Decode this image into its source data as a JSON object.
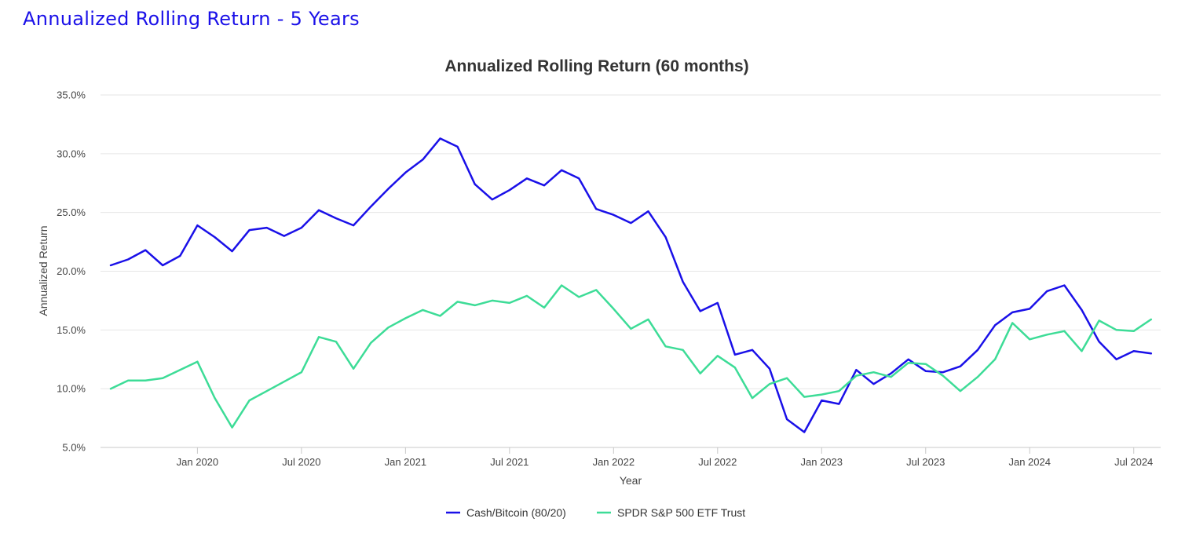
{
  "page": {
    "heading": "Annualized Rolling Return - 5 Years"
  },
  "chart_data": {
    "type": "line",
    "title": "Annualized Rolling Return (60 months)",
    "xlabel": "Year",
    "ylabel": "Annualized Return",
    "ylim": [
      5,
      35
    ],
    "yticks": [
      "5.0%",
      "10.0%",
      "15.0%",
      "20.0%",
      "25.0%",
      "30.0%",
      "35.0%"
    ],
    "ytick_values": [
      5,
      10,
      15,
      20,
      25,
      30,
      35
    ],
    "xticks": [
      "Jan 2020",
      "Jul 2020",
      "Jan 2021",
      "Jul 2021",
      "Jan 2022",
      "Jul 2022",
      "Jan 2023",
      "Jul 2023",
      "Jan 2024",
      "Jul 2024"
    ],
    "xtick_dates": [
      "2020-01",
      "2020-07",
      "2021-01",
      "2021-07",
      "2022-01",
      "2022-07",
      "2023-01",
      "2023-07",
      "2024-01",
      "2024-07"
    ],
    "grid": true,
    "legend_position": "bottom-center",
    "x": [
      "2019-08",
      "2019-09",
      "2019-10",
      "2019-11",
      "2019-12",
      "2020-01",
      "2020-02",
      "2020-03",
      "2020-04",
      "2020-05",
      "2020-06",
      "2020-07",
      "2020-08",
      "2020-09",
      "2020-10",
      "2020-11",
      "2020-12",
      "2021-01",
      "2021-02",
      "2021-03",
      "2021-04",
      "2021-05",
      "2021-06",
      "2021-07",
      "2021-08",
      "2021-09",
      "2021-10",
      "2021-11",
      "2021-12",
      "2022-01",
      "2022-02",
      "2022-03",
      "2022-04",
      "2022-05",
      "2022-06",
      "2022-07",
      "2022-08",
      "2022-09",
      "2022-10",
      "2022-11",
      "2022-12",
      "2023-01",
      "2023-02",
      "2023-03",
      "2023-04",
      "2023-05",
      "2023-06",
      "2023-07",
      "2023-08",
      "2023-09",
      "2023-10",
      "2023-11",
      "2023-12",
      "2024-01",
      "2024-02",
      "2024-03",
      "2024-04",
      "2024-05",
      "2024-06",
      "2024-07",
      "2024-08",
      "2024-09"
    ],
    "series": [
      {
        "name": "Cash/Bitcoin (80/20)",
        "color": "#1a10e8",
        "values": [
          20.5,
          21.0,
          21.8,
          20.5,
          21.3,
          23.9,
          22.9,
          21.7,
          23.5,
          23.7,
          23.0,
          23.7,
          25.2,
          24.5,
          23.9,
          25.5,
          27.0,
          28.4,
          29.5,
          31.3,
          30.6,
          27.4,
          26.1,
          26.9,
          27.9,
          27.3,
          28.6,
          27.9,
          25.3,
          24.8,
          24.1,
          25.1,
          22.9,
          19.1,
          16.6,
          17.3,
          12.9,
          13.3,
          11.7,
          7.4,
          6.3,
          9.0,
          8.7,
          11.6,
          10.4,
          11.3,
          12.5,
          11.5,
          11.4,
          11.9,
          13.3,
          15.4,
          16.5,
          16.8,
          18.3,
          18.8,
          16.7,
          14.0,
          12.5,
          13.2,
          13.0,
          null
        ]
      },
      {
        "name": "SPDR S&P 500 ETF Trust",
        "color": "#3ddc97",
        "values": [
          10.0,
          10.7,
          10.7,
          10.9,
          11.6,
          12.3,
          9.2,
          6.7,
          9.0,
          9.8,
          10.6,
          11.4,
          14.4,
          14.0,
          11.7,
          13.9,
          15.2,
          16.0,
          16.7,
          16.2,
          17.4,
          17.1,
          17.5,
          17.3,
          17.9,
          16.9,
          18.8,
          17.8,
          18.4,
          16.8,
          15.1,
          15.9,
          13.6,
          13.3,
          11.3,
          12.8,
          11.8,
          9.2,
          10.4,
          10.9,
          9.3,
          9.5,
          9.8,
          11.1,
          11.4,
          11.0,
          12.2,
          12.1,
          11.1,
          9.8,
          11.0,
          12.5,
          15.6,
          14.2,
          14.6,
          14.9,
          13.2,
          15.8,
          15.0,
          14.9,
          15.9,
          null
        ]
      }
    ]
  }
}
